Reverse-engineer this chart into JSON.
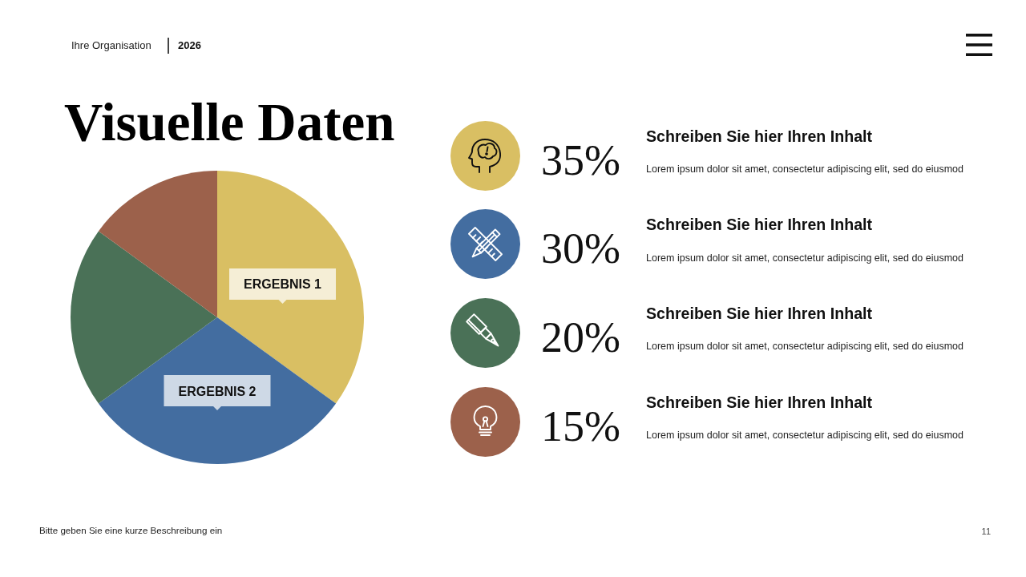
{
  "chart_data": {
    "type": "pie",
    "title": "Visuelle Daten",
    "categories": [
      "ERGEBNIS 1",
      "ERGEBNIS 2",
      null,
      null
    ],
    "values": [
      35,
      30,
      20,
      15
    ],
    "colors": [
      "#d9bf63",
      "#436da0",
      "#4a7157",
      "#9c614b"
    ],
    "annotations": [
      "Ihre Organisation",
      "2026",
      "35%",
      "Schreiben Sie hier Ihren Inhalt",
      "Lorem ipsum dolor sit amet, consectetur adipiscing elit, sed do eiusmod",
      "30%",
      "Schreiben Sie hier Ihren Inhalt",
      "Lorem ipsum dolor sit amet, consectetur adipiscing elit, sed do eiusmod",
      "20%",
      "Schreiben Sie hier Ihren Inhalt",
      "Lorem ipsum dolor sit amet, consectetur adipiscing elit, sed do eiusmod",
      "15%",
      "Schreiben Sie hier Ihren Inhalt",
      "Lorem ipsum dolor sit amet, consectetur adipiscing elit, sed do eiusmod",
      "Bitte geben Sie eine kurze Beschreibung ein",
      "11"
    ]
  }
}
